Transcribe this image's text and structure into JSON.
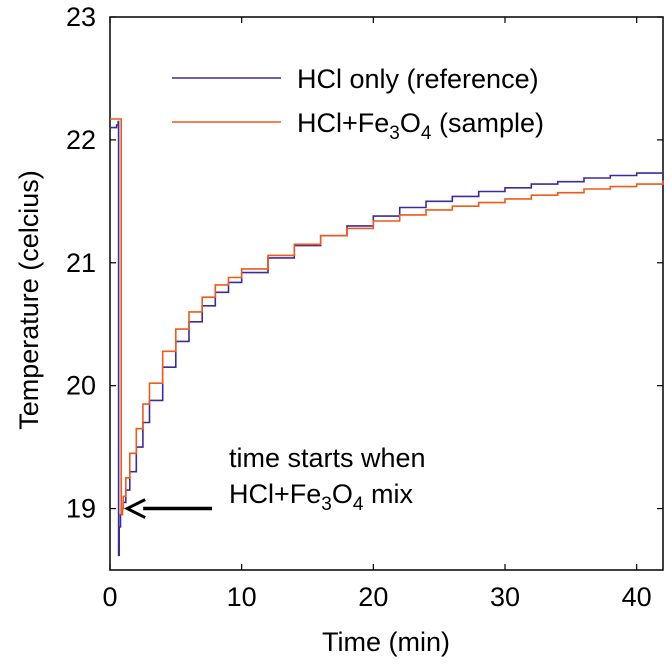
{
  "chart_data": {
    "type": "line",
    "xlabel": "Time (min)",
    "ylabel": "Temperature (celcius)",
    "xlim": [
      0,
      42
    ],
    "ylim": [
      18.5,
      23
    ],
    "x_ticks": [
      0,
      10,
      20,
      30,
      40
    ],
    "y_ticks": [
      19,
      20,
      21,
      22,
      23
    ],
    "grid": false,
    "legend_position": "top-right",
    "series": [
      {
        "name": "HCl only (reference)",
        "color": "#3a2c9c",
        "x": [
          0.0,
          0.5,
          0.62,
          0.65,
          0.7,
          0.8,
          0.9,
          1.0,
          1.2,
          1.5,
          2,
          2.5,
          3,
          4,
          5,
          6,
          7,
          8,
          9,
          10,
          12,
          14,
          16,
          18,
          20,
          22,
          24,
          26,
          28,
          30,
          32,
          34,
          36,
          38,
          40,
          42
        ],
        "y": [
          22.1,
          22.12,
          22.15,
          18.62,
          18.85,
          18.95,
          19.0,
          19.05,
          19.15,
          19.3,
          19.5,
          19.7,
          19.88,
          20.15,
          20.36,
          20.52,
          20.65,
          20.76,
          20.84,
          20.92,
          21.04,
          21.14,
          21.22,
          21.3,
          21.38,
          21.45,
          21.5,
          21.54,
          21.58,
          21.61,
          21.64,
          21.66,
          21.69,
          21.71,
          21.73,
          21.76
        ]
      },
      {
        "name": "HCl+Fe₃O₄ (sample)",
        "color": "#ee5a1a",
        "x": [
          0.0,
          0.6,
          0.8,
          0.85,
          0.95,
          1.0,
          1.2,
          1.5,
          2,
          2.5,
          3,
          4,
          5,
          6,
          7,
          8,
          9,
          10,
          12,
          14,
          16,
          18,
          20,
          22,
          24,
          26,
          28,
          30,
          32,
          34,
          36,
          38,
          40,
          42
        ],
        "y": [
          22.17,
          22.17,
          22.17,
          18.95,
          19.0,
          19.1,
          19.25,
          19.45,
          19.65,
          19.85,
          20.02,
          20.28,
          20.46,
          20.6,
          20.72,
          20.82,
          20.88,
          20.95,
          21.06,
          21.15,
          21.22,
          21.28,
          21.34,
          21.39,
          21.43,
          21.46,
          21.49,
          21.52,
          21.55,
          21.57,
          21.6,
          21.62,
          21.64,
          21.67
        ]
      }
    ],
    "annotation": {
      "line1": "time starts when",
      "line2_prefix": "HCl+Fe",
      "line2_sub1": "3",
      "line2_mid": "O",
      "line2_sub2": "4",
      "line2_suffix": " mix",
      "arrow_to": [
        1.0,
        19.0
      ]
    },
    "legend": {
      "entries": [
        {
          "prefix": "HCl only (reference)"
        },
        {
          "prefix": "HCl+Fe",
          "sub1": "3",
          "mid": "O",
          "sub2": "4",
          "suffix": " (sample)"
        }
      ]
    }
  }
}
